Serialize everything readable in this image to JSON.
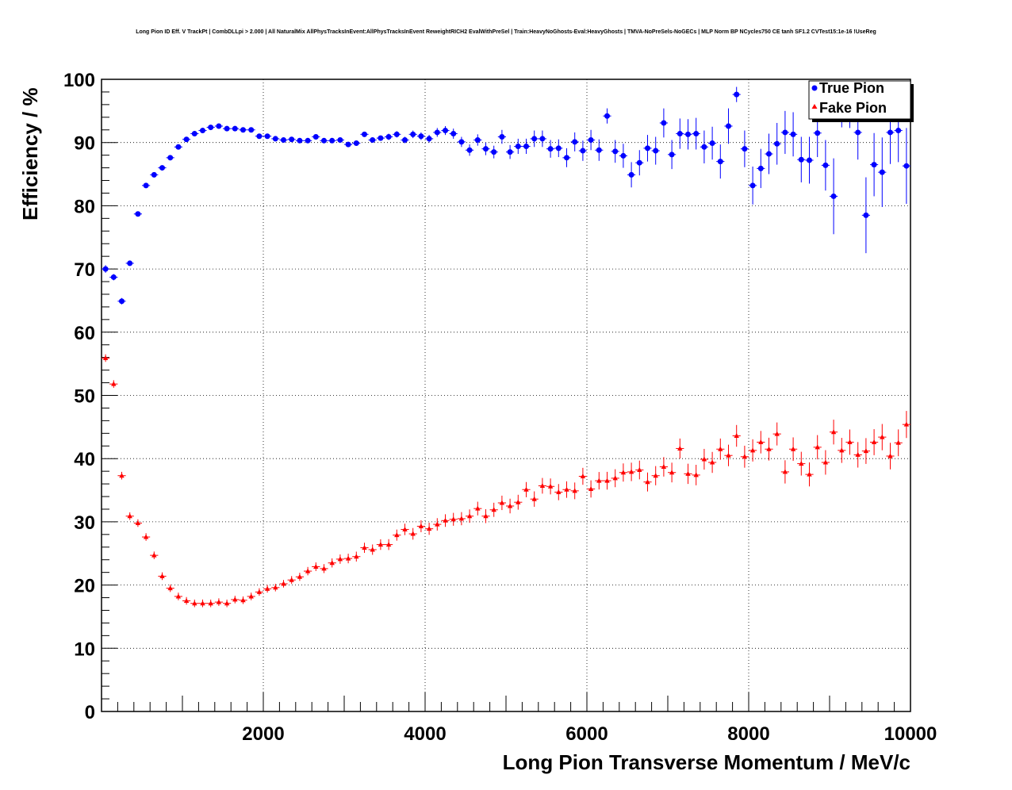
{
  "chart_data": {
    "type": "scatter",
    "title": "Long Pion ID Eff. V TrackPt | CombDLLpi > 2.000 | All NaturalMix AllPhysTracksInEvent:AllPhysTracksInEvent ReweightRICH2 EvalWithPreSel | Train:HeavyNoGhosts-Eval:HeavyGhosts | TMVA-NoPreSels-NoGECs | MLP Norm BP NCycles750 CE tanh SF1.2 CVTest15:1e-16 !UseReg",
    "xlabel": "Long Pion Transverse Momentum / MeV/c",
    "ylabel": "Efficiency / %",
    "xlim": [
      0,
      10000
    ],
    "ylim": [
      0,
      100
    ],
    "xticks": [
      "2000",
      "4000",
      "6000",
      "8000",
      "10000"
    ],
    "yticks": [
      "0",
      "10",
      "20",
      "30",
      "40",
      "50",
      "60",
      "70",
      "80",
      "90",
      "100"
    ],
    "grid": true,
    "legend_position": "top-right",
    "series": [
      {
        "name": "True Pion",
        "color": "#0000ff",
        "marker": "circle",
        "x": [
          50,
          150,
          250,
          350,
          450,
          550,
          650,
          750,
          850,
          950,
          1050,
          1150,
          1250,
          1350,
          1450,
          1550,
          1650,
          1750,
          1850,
          1950,
          2050,
          2150,
          2250,
          2350,
          2450,
          2550,
          2650,
          2750,
          2850,
          2950,
          3050,
          3150,
          3250,
          3350,
          3450,
          3550,
          3650,
          3750,
          3850,
          3950,
          4050,
          4150,
          4250,
          4350,
          4450,
          4550,
          4650,
          4750,
          4850,
          4950,
          5050,
          5150,
          5250,
          5350,
          5450,
          5550,
          5650,
          5750,
          5850,
          5950,
          6050,
          6150,
          6250,
          6350,
          6450,
          6550,
          6650,
          6750,
          6850,
          6950,
          7050,
          7150,
          7250,
          7350,
          7450,
          7550,
          7650,
          7750,
          7850,
          7950,
          8050,
          8150,
          8250,
          8350,
          8450,
          8550,
          8650,
          8750,
          8850,
          8950,
          9050,
          9150,
          9250,
          9350,
          9450,
          9550,
          9650,
          9750,
          9850,
          9950
        ],
        "y": [
          70.0,
          68.7,
          64.9,
          70.9,
          78.7,
          83.2,
          84.9,
          86.0,
          87.6,
          89.3,
          90.5,
          91.4,
          91.9,
          92.4,
          92.6,
          92.2,
          92.2,
          92.0,
          92.0,
          91.0,
          91.0,
          90.6,
          90.4,
          90.5,
          90.3,
          90.3,
          90.9,
          90.3,
          90.3,
          90.4,
          89.7,
          89.9,
          91.3,
          90.4,
          90.7,
          90.9,
          91.3,
          90.4,
          91.3,
          91.0,
          90.6,
          91.6,
          91.9,
          91.4,
          90.1,
          88.8,
          90.4,
          89.0,
          88.5,
          90.9,
          88.5,
          89.4,
          89.4,
          90.6,
          90.6,
          89.0,
          89.1,
          87.6,
          90.1,
          88.7,
          90.4,
          88.8,
          94.2,
          88.6,
          87.9,
          84.9,
          86.8,
          89.1,
          88.7,
          93.1,
          88.1,
          91.4,
          91.3,
          91.4,
          89.3,
          89.9,
          87.0,
          92.6,
          97.6,
          89.0,
          83.2,
          85.9,
          88.2,
          89.8,
          91.6,
          91.3,
          87.3,
          87.2,
          91.5,
          86.4,
          81.5,
          94.9,
          94.8,
          91.6,
          78.5,
          86.5,
          85.3,
          91.6,
          91.9,
          86.3
        ],
        "err": [
          0.6,
          0.5,
          0.5,
          0.4,
          0.4,
          0.3,
          0.3,
          0.3,
          0.3,
          0.3,
          0.3,
          0.3,
          0.3,
          0.3,
          0.3,
          0.3,
          0.3,
          0.3,
          0.3,
          0.3,
          0.3,
          0.3,
          0.3,
          0.3,
          0.3,
          0.3,
          0.3,
          0.3,
          0.3,
          0.3,
          0.4,
          0.4,
          0.4,
          0.4,
          0.4,
          0.5,
          0.5,
          0.5,
          0.6,
          0.6,
          0.6,
          0.7,
          0.7,
          0.8,
          0.8,
          0.9,
          0.9,
          1.0,
          1.0,
          1.1,
          1.1,
          1.2,
          1.2,
          1.3,
          1.3,
          1.4,
          1.4,
          1.5,
          1.5,
          1.6,
          1.6,
          1.7,
          1.2,
          1.8,
          1.9,
          2.0,
          2.0,
          2.1,
          2.2,
          2.3,
          2.3,
          2.4,
          2.4,
          2.5,
          2.6,
          2.6,
          2.7,
          2.8,
          1.2,
          2.9,
          3.0,
          3.1,
          3.2,
          3.3,
          3.4,
          3.5,
          3.6,
          3.7,
          3.8,
          4.0,
          6.0,
          2.5,
          2.5,
          4.3,
          6.0,
          5.0,
          5.5,
          5.0,
          5.0,
          6.0
        ]
      },
      {
        "name": "Fake Pion",
        "color": "#ff0000",
        "marker": "triangle",
        "x": [
          50,
          150,
          250,
          350,
          450,
          550,
          650,
          750,
          850,
          950,
          1050,
          1150,
          1250,
          1350,
          1450,
          1550,
          1650,
          1750,
          1850,
          1950,
          2050,
          2150,
          2250,
          2350,
          2450,
          2550,
          2650,
          2750,
          2850,
          2950,
          3050,
          3150,
          3250,
          3350,
          3450,
          3550,
          3650,
          3750,
          3850,
          3950,
          4050,
          4150,
          4250,
          4350,
          4450,
          4550,
          4650,
          4750,
          4850,
          4950,
          5050,
          5150,
          5250,
          5350,
          5450,
          5550,
          5650,
          5750,
          5850,
          5950,
          6050,
          6150,
          6250,
          6350,
          6450,
          6550,
          6650,
          6750,
          6850,
          6950,
          7050,
          7150,
          7250,
          7350,
          7450,
          7550,
          7650,
          7750,
          7850,
          7950,
          8050,
          8150,
          8250,
          8350,
          8450,
          8550,
          8650,
          8750,
          8850,
          8950,
          9050,
          9150,
          9250,
          9350,
          9450,
          9550,
          9650,
          9750,
          9850,
          9950
        ],
        "y": [
          55.9,
          51.8,
          37.3,
          30.9,
          29.8,
          27.6,
          24.7,
          21.4,
          19.5,
          18.2,
          17.5,
          17.1,
          17.1,
          17.1,
          17.3,
          17.1,
          17.7,
          17.6,
          18.2,
          18.9,
          19.4,
          19.6,
          20.2,
          20.8,
          21.3,
          22.2,
          22.9,
          22.6,
          23.5,
          24.1,
          24.2,
          24.5,
          25.9,
          25.6,
          26.4,
          26.4,
          27.9,
          28.8,
          28.1,
          29.3,
          28.9,
          29.6,
          30.2,
          30.4,
          30.5,
          30.9,
          32.1,
          30.9,
          31.9,
          33.0,
          32.5,
          33.1,
          35.1,
          33.6,
          35.7,
          35.6,
          34.7,
          35.1,
          34.9,
          37.2,
          35.2,
          36.5,
          36.5,
          36.9,
          37.8,
          37.9,
          38.2,
          36.3,
          37.3,
          38.7,
          37.8,
          41.6,
          37.6,
          37.4,
          39.9,
          39.4,
          41.5,
          40.5,
          43.6,
          40.3,
          41.3,
          42.6,
          41.5,
          43.9,
          37.9,
          41.5,
          39.2,
          37.5,
          41.8,
          39.4,
          44.2,
          41.3,
          42.6,
          40.6,
          41.2,
          42.6,
          43.4,
          40.4,
          42.5,
          45.4
        ]
      }
    ]
  }
}
